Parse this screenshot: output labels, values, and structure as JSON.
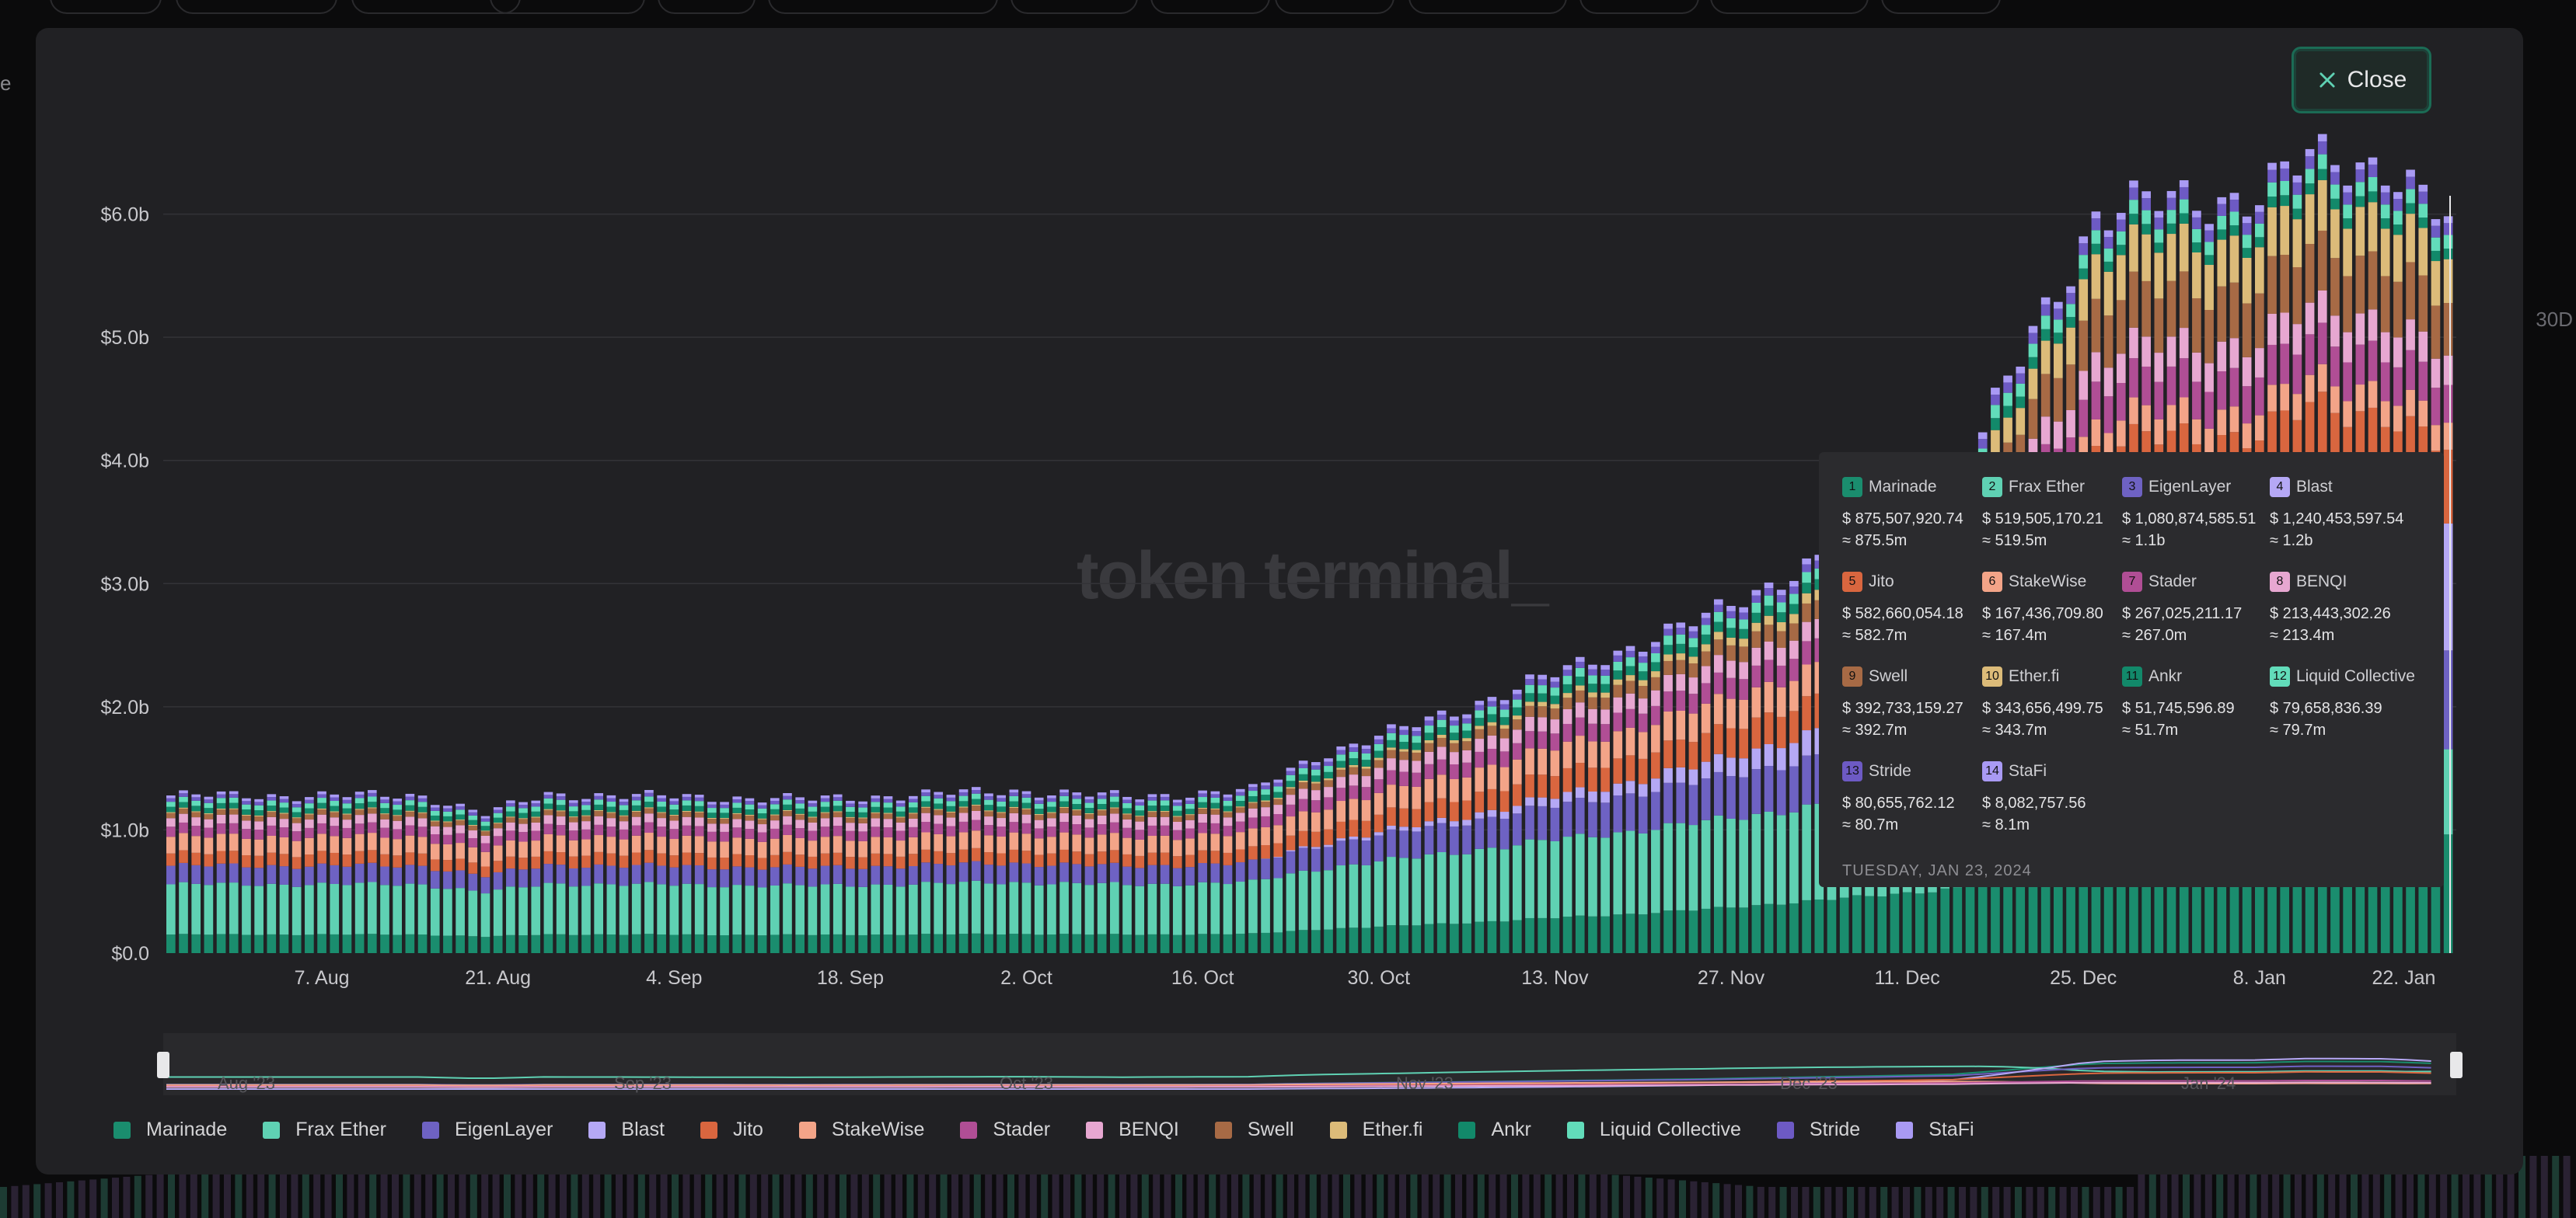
{
  "close_label": "Close",
  "bg_left_text": "e",
  "bg_right_text": "30D",
  "watermark": "token terminal_",
  "colors": {
    "Marinade": "#1a8d6e",
    "Frax Ether": "#5fd1b3",
    "EigenLayer": "#6e62c3",
    "Blast": "#b5a8f5",
    "Jito": "#d9663f",
    "StakeWise": "#f3a488",
    "Stader": "#b04e95",
    "BENQI": "#e7a7d1",
    "Swell": "#a76a45",
    "Ether.fi": "#dcbb79",
    "Ankr": "#12896a",
    "Liquid Collective": "#62dcba",
    "Stride": "#6d5ac4",
    "StaFi": "#a99af4"
  },
  "chart_data": {
    "type": "bar",
    "stacked": true,
    "ylabel": "",
    "xlabel": "",
    "ylim": [
      0,
      7.0
    ],
    "y_unit": "billion USD",
    "y_ticks": [
      "$0.0",
      "$1.0b",
      "$2.0b",
      "$3.0b",
      "$4.0b",
      "$5.0b",
      "$6.0b"
    ],
    "x_ticks": [
      "7. Aug",
      "21. Aug",
      "4. Sep",
      "18. Sep",
      "2. Oct",
      "16. Oct",
      "30. Oct",
      "13. Nov",
      "27. Nov",
      "11. Dec",
      "25. Dec",
      "8. Jan",
      "22. Jan"
    ],
    "grid": true,
    "x_range": [
      "2023-07-26",
      "2024-01-23"
    ],
    "total_keypoints": [
      [
        "2023-07-26",
        1.28
      ],
      [
        "2023-08-15",
        1.28
      ],
      [
        "2023-08-20",
        1.13
      ],
      [
        "2023-08-25",
        1.29
      ],
      [
        "2023-09-15",
        1.25
      ],
      [
        "2023-10-01",
        1.32
      ],
      [
        "2023-10-10",
        1.27
      ],
      [
        "2023-10-20",
        1.32
      ],
      [
        "2023-10-25",
        1.6
      ],
      [
        "2023-11-01",
        1.82
      ],
      [
        "2023-11-10",
        2.15
      ],
      [
        "2023-11-18",
        2.45
      ],
      [
        "2023-11-25",
        2.72
      ],
      [
        "2023-12-01",
        3.05
      ],
      [
        "2023-12-08",
        3.38
      ],
      [
        "2023-12-15",
        3.78
      ],
      [
        "2023-12-21",
        5.05
      ],
      [
        "2023-12-26",
        5.98
      ],
      [
        "2024-01-01",
        6.12
      ],
      [
        "2024-01-08",
        6.15
      ],
      [
        "2024-01-12",
        6.45
      ],
      [
        "2024-01-18",
        6.42
      ],
      [
        "2024-01-23",
        5.92
      ]
    ],
    "series": [
      {
        "name": "Marinade",
        "share": [
          0.118,
          0.145
        ]
      },
      {
        "name": "Frax Ether",
        "share": [
          0.318,
          0.095
        ]
      },
      {
        "name": "EigenLayer",
        "share": [
          0.118,
          0.12
        ]
      },
      {
        "name": "Blast",
        "share": [
          0.0,
          0.16
        ]
      },
      {
        "name": "Jito",
        "share": [
          0.078,
          0.09
        ]
      },
      {
        "name": "StakeWise",
        "share": [
          0.106,
          0.03
        ]
      },
      {
        "name": "Stader",
        "share": [
          0.064,
          0.045
        ]
      },
      {
        "name": "BENQI",
        "share": [
          0.054,
          0.035
        ]
      },
      {
        "name": "Swell",
        "share": [
          0.032,
          0.065
        ]
      },
      {
        "name": "Ether.fi",
        "share": [
          0.006,
          0.055
        ]
      },
      {
        "name": "Ankr",
        "share": [
          0.034,
          0.012
        ]
      },
      {
        "name": "Liquid Collective",
        "share": [
          0.032,
          0.016
        ]
      },
      {
        "name": "Stride",
        "share": [
          0.022,
          0.014
        ]
      },
      {
        "name": "StaFi",
        "share": [
          0.018,
          0.008
        ]
      }
    ]
  },
  "tooltip": {
    "date": "TUESDAY, JAN 23, 2024",
    "items": [
      {
        "num": "1",
        "name": "Marinade",
        "exact": "$ 875,507,920.74",
        "approx": "≈ 875.5m"
      },
      {
        "num": "2",
        "name": "Frax Ether",
        "exact": "$ 519,505,170.21",
        "approx": "≈ 519.5m"
      },
      {
        "num": "3",
        "name": "EigenLayer",
        "exact": "$ 1,080,874,585.51",
        "approx": "≈ 1.1b"
      },
      {
        "num": "4",
        "name": "Blast",
        "exact": "$ 1,240,453,597.54",
        "approx": "≈ 1.2b"
      },
      {
        "num": "5",
        "name": "Jito",
        "exact": "$ 582,660,054.18",
        "approx": "≈ 582.7m"
      },
      {
        "num": "6",
        "name": "StakeWise",
        "exact": "$ 167,436,709.80",
        "approx": "≈ 167.4m"
      },
      {
        "num": "7",
        "name": "Stader",
        "exact": "$ 267,025,211.17",
        "approx": "≈ 267.0m"
      },
      {
        "num": "8",
        "name": "BENQI",
        "exact": "$ 213,443,302.26",
        "approx": "≈ 213.4m"
      },
      {
        "num": "9",
        "name": "Swell",
        "exact": "$ 392,733,159.27",
        "approx": "≈ 392.7m"
      },
      {
        "num": "10",
        "name": "Ether.fi",
        "exact": "$ 343,656,499.75",
        "approx": "≈ 343.7m"
      },
      {
        "num": "11",
        "name": "Ankr",
        "exact": "$ 51,745,596.89",
        "approx": "≈ 51.7m"
      },
      {
        "num": "12",
        "name": "Liquid Collective",
        "exact": "$ 79,658,836.39",
        "approx": "≈ 79.7m"
      },
      {
        "num": "13",
        "name": "Stride",
        "exact": "$ 80,655,762.12",
        "approx": "≈ 80.7m"
      },
      {
        "num": "14",
        "name": "StaFi",
        "exact": "$ 8,082,757.56",
        "approx": "≈ 8.1m"
      }
    ]
  },
  "navigator": {
    "months": [
      "Aug '23",
      "Sep '23",
      "Oct '23",
      "Nov '23",
      "Dec '23",
      "Jan '24"
    ]
  },
  "legend": [
    "Marinade",
    "Frax Ether",
    "EigenLayer",
    "Blast",
    "Jito",
    "StakeWise",
    "Stader",
    "BENQI",
    "Swell",
    "Ether.fi",
    "Ankr",
    "Liquid Collective",
    "Stride",
    "StaFi"
  ]
}
